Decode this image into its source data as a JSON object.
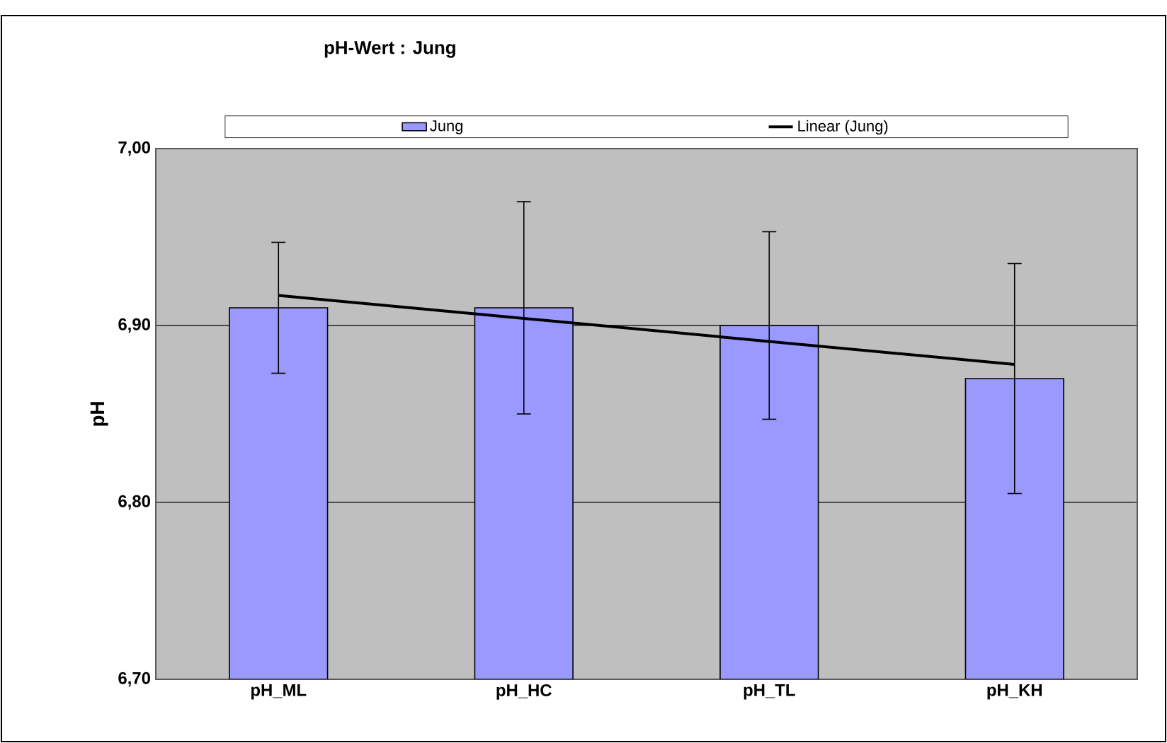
{
  "chart_data": {
    "type": "bar",
    "title": "pH-Wert :  Jung",
    "ylabel": "pH",
    "categories": [
      "pH_ML",
      "pH_HC",
      "pH_TL",
      "pH_KH"
    ],
    "series": [
      {
        "name": "Jung",
        "color": "#9999ff",
        "values": [
          6.91,
          6.91,
          6.9,
          6.87
        ],
        "errors": [
          0.037,
          0.06,
          0.053,
          0.065
        ]
      },
      {
        "name": "Linear (Jung)",
        "type": "line",
        "color": "#000000",
        "values": [
          6.917,
          6.904,
          6.891,
          6.878
        ]
      }
    ],
    "ylim": [
      6.7,
      7.0
    ],
    "yticks": [
      {
        "value": 6.7,
        "label": "6,70"
      },
      {
        "value": 6.8,
        "label": "6,80"
      },
      {
        "value": 6.9,
        "label": "6,90"
      },
      {
        "value": 7.0,
        "label": "7,00"
      }
    ],
    "grid": "y",
    "legend": "top",
    "marker": "none",
    "line_style": "solid"
  }
}
